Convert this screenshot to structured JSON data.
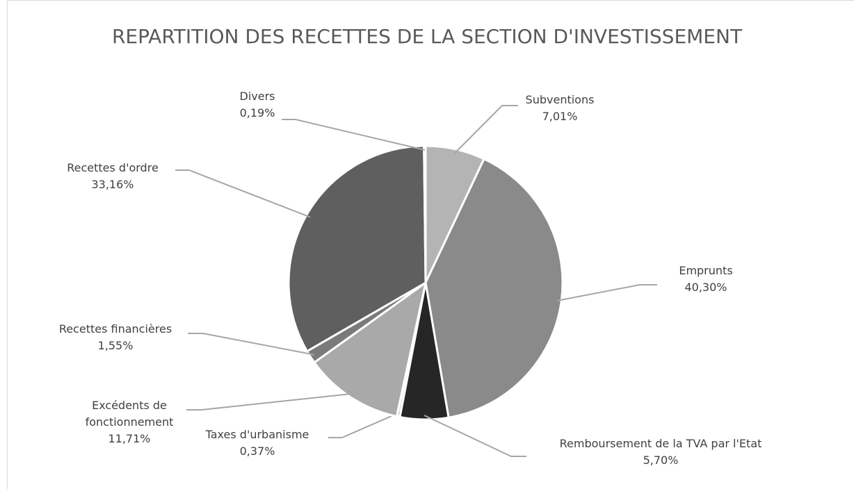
{
  "chart_data": {
    "type": "pie",
    "title": "REPARTITION DES RECETTES DE LA SECTION D'INVESTISSEMENT",
    "categories": [
      "Subventions",
      "Emprunts",
      "Remboursement de la TVA par l'Etat",
      "Taxes d'urbanisme",
      "Excédents de fonctionnement",
      "Recettes financières",
      "Recettes d'ordre",
      "Divers"
    ],
    "values": [
      7.01,
      40.3,
      5.7,
      0.37,
      11.71,
      1.55,
      33.16,
      0.19
    ],
    "value_labels": [
      "7,01%",
      "40,30%",
      "5,70%",
      "0,37%",
      "11,71%",
      "1,55%",
      "33,16%",
      "0,19%"
    ],
    "colors": [
      "#b4b4b4",
      "#8a8a8a",
      "#262626",
      "#dcdcdc",
      "#a9a9a9",
      "#7a7a7a",
      "#5f5f5f",
      "#cfcfcf"
    ]
  }
}
